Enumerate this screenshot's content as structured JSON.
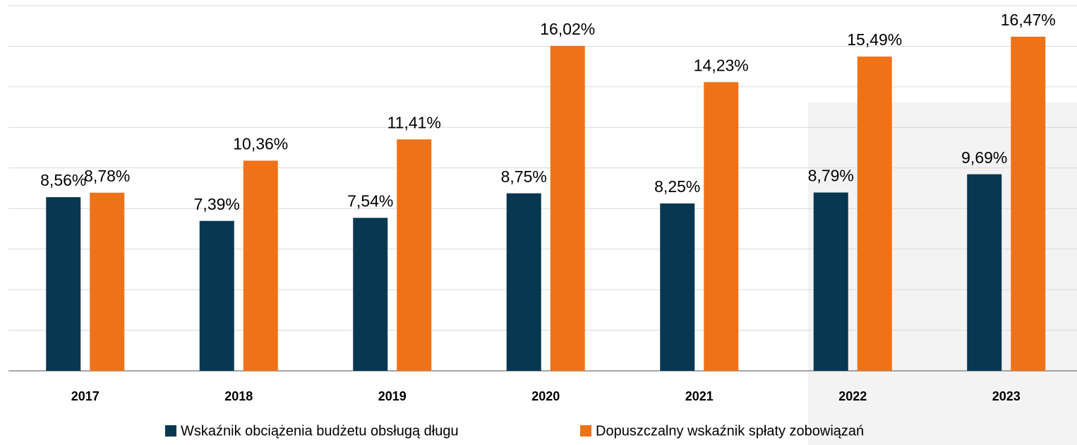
{
  "chart_data": {
    "type": "bar",
    "categories": [
      "2017",
      "2018",
      "2019",
      "2020",
      "2021",
      "2022",
      "2023"
    ],
    "series": [
      {
        "name": "Wskaźnik obciążenia budżetu obsługą długu",
        "color": "#073751",
        "values": [
          8.56,
          7.39,
          7.54,
          8.75,
          8.25,
          8.79,
          9.69
        ],
        "value_labels": [
          "8,56%",
          "7,39%",
          "7,54%",
          "8,75%",
          "8,25%",
          "8,79%",
          "9,69%"
        ]
      },
      {
        "name": "Dopuszczalny wskaźnik spłaty zobowiązań",
        "color": "#f07218",
        "values": [
          8.78,
          10.36,
          11.41,
          16.02,
          14.23,
          15.49,
          16.47
        ],
        "value_labels": [
          "8,78%",
          "10,36%",
          "11,41%",
          "16,02%",
          "14,23%",
          "15,49%",
          "16,47%"
        ]
      }
    ],
    "ylim": [
      0,
      18
    ],
    "yticks": [
      0,
      2,
      4,
      6,
      8,
      10,
      12,
      14,
      16,
      18
    ],
    "grid": true,
    "legend": "bottom"
  }
}
